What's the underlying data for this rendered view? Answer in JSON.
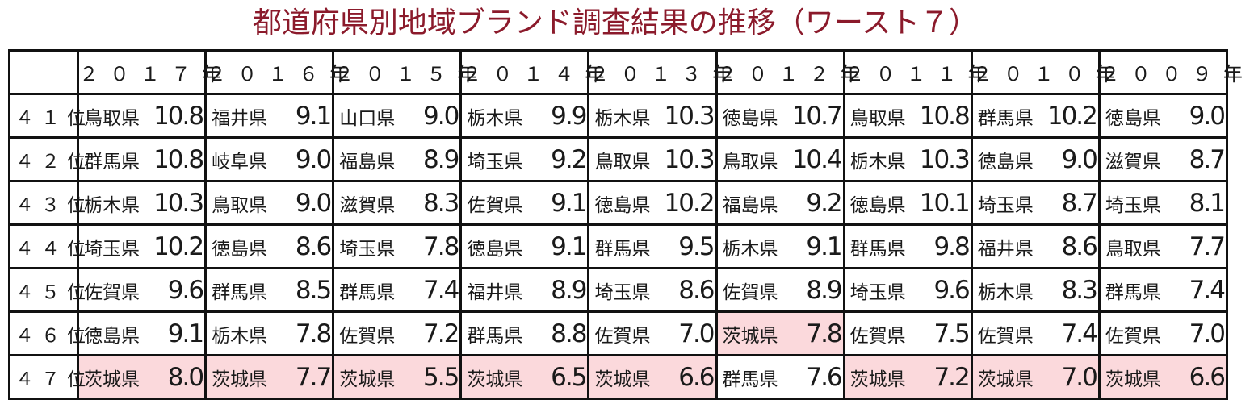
{
  "title": "都道府県別地域ブランド調査結果の推移（ワースト７）",
  "highlight_color": "#fbd9dc",
  "years": [
    "２０１７年",
    "２０１６年",
    "２０１５年",
    "２０１４年",
    "２０１３年",
    "２０１２年",
    "２０１１年",
    "２０１０年",
    "２００９年"
  ],
  "rows": [
    {
      "rank": "４１位",
      "cells": [
        {
          "pref": "鳥取県",
          "value": "10.8",
          "hl": false
        },
        {
          "pref": "福井県",
          "value": "9.1",
          "hl": false
        },
        {
          "pref": "山口県",
          "value": "9.0",
          "hl": false
        },
        {
          "pref": "栃木県",
          "value": "9.9",
          "hl": false
        },
        {
          "pref": "栃木県",
          "value": "10.3",
          "hl": false
        },
        {
          "pref": "徳島県",
          "value": "10.7",
          "hl": false
        },
        {
          "pref": "鳥取県",
          "value": "10.8",
          "hl": false
        },
        {
          "pref": "群馬県",
          "value": "10.2",
          "hl": false
        },
        {
          "pref": "徳島県",
          "value": "9.0",
          "hl": false
        }
      ]
    },
    {
      "rank": "４２位",
      "cells": [
        {
          "pref": "群馬県",
          "value": "10.8",
          "hl": false
        },
        {
          "pref": "岐阜県",
          "value": "9.0",
          "hl": false
        },
        {
          "pref": "福島県",
          "value": "8.9",
          "hl": false
        },
        {
          "pref": "埼玉県",
          "value": "9.2",
          "hl": false
        },
        {
          "pref": "鳥取県",
          "value": "10.3",
          "hl": false
        },
        {
          "pref": "鳥取県",
          "value": "10.4",
          "hl": false
        },
        {
          "pref": "栃木県",
          "value": "10.3",
          "hl": false
        },
        {
          "pref": "徳島県",
          "value": "9.0",
          "hl": false
        },
        {
          "pref": "滋賀県",
          "value": "8.7",
          "hl": false
        }
      ]
    },
    {
      "rank": "４３位",
      "cells": [
        {
          "pref": "栃木県",
          "value": "10.3",
          "hl": false
        },
        {
          "pref": "鳥取県",
          "value": "9.0",
          "hl": false
        },
        {
          "pref": "滋賀県",
          "value": "8.3",
          "hl": false
        },
        {
          "pref": "佐賀県",
          "value": "9.1",
          "hl": false
        },
        {
          "pref": "徳島県",
          "value": "10.2",
          "hl": false
        },
        {
          "pref": "福島県",
          "value": "9.2",
          "hl": false
        },
        {
          "pref": "徳島県",
          "value": "10.1",
          "hl": false
        },
        {
          "pref": "埼玉県",
          "value": "8.7",
          "hl": false
        },
        {
          "pref": "埼玉県",
          "value": "8.1",
          "hl": false
        }
      ]
    },
    {
      "rank": "４４位",
      "cells": [
        {
          "pref": "埼玉県",
          "value": "10.2",
          "hl": false
        },
        {
          "pref": "徳島県",
          "value": "8.6",
          "hl": false
        },
        {
          "pref": "埼玉県",
          "value": "7.8",
          "hl": false
        },
        {
          "pref": "徳島県",
          "value": "9.1",
          "hl": false
        },
        {
          "pref": "群馬県",
          "value": "9.5",
          "hl": false
        },
        {
          "pref": "栃木県",
          "value": "9.1",
          "hl": false
        },
        {
          "pref": "群馬県",
          "value": "9.8",
          "hl": false
        },
        {
          "pref": "福井県",
          "value": "8.6",
          "hl": false
        },
        {
          "pref": "鳥取県",
          "value": "7.7",
          "hl": false
        }
      ]
    },
    {
      "rank": "４５位",
      "cells": [
        {
          "pref": "佐賀県",
          "value": "9.6",
          "hl": false
        },
        {
          "pref": "群馬県",
          "value": "8.5",
          "hl": false
        },
        {
          "pref": "群馬県",
          "value": "7.4",
          "hl": false
        },
        {
          "pref": "福井県",
          "value": "8.9",
          "hl": false
        },
        {
          "pref": "埼玉県",
          "value": "8.6",
          "hl": false
        },
        {
          "pref": "佐賀県",
          "value": "8.9",
          "hl": false
        },
        {
          "pref": "埼玉県",
          "value": "9.6",
          "hl": false
        },
        {
          "pref": "栃木県",
          "value": "8.3",
          "hl": false
        },
        {
          "pref": "群馬県",
          "value": "7.4",
          "hl": false
        }
      ]
    },
    {
      "rank": "４６位",
      "cells": [
        {
          "pref": "徳島県",
          "value": "9.1",
          "hl": false
        },
        {
          "pref": "栃木県",
          "value": "7.8",
          "hl": false
        },
        {
          "pref": "佐賀県",
          "value": "7.2",
          "hl": false
        },
        {
          "pref": "群馬県",
          "value": "8.8",
          "hl": false
        },
        {
          "pref": "佐賀県",
          "value": "7.0",
          "hl": false
        },
        {
          "pref": "茨城県",
          "value": "7.8",
          "hl": true
        },
        {
          "pref": "佐賀県",
          "value": "7.5",
          "hl": false
        },
        {
          "pref": "佐賀県",
          "value": "7.4",
          "hl": false
        },
        {
          "pref": "佐賀県",
          "value": "7.0",
          "hl": false
        }
      ]
    },
    {
      "rank": "４７位",
      "cells": [
        {
          "pref": "茨城県",
          "value": "8.0",
          "hl": true
        },
        {
          "pref": "茨城県",
          "value": "7.7",
          "hl": true
        },
        {
          "pref": "茨城県",
          "value": "5.5",
          "hl": true
        },
        {
          "pref": "茨城県",
          "value": "6.5",
          "hl": true
        },
        {
          "pref": "茨城県",
          "value": "6.6",
          "hl": true
        },
        {
          "pref": "群馬県",
          "value": "7.6",
          "hl": false
        },
        {
          "pref": "茨城県",
          "value": "7.2",
          "hl": true
        },
        {
          "pref": "茨城県",
          "value": "7.0",
          "hl": true
        },
        {
          "pref": "茨城県",
          "value": "6.6",
          "hl": true
        }
      ]
    }
  ]
}
